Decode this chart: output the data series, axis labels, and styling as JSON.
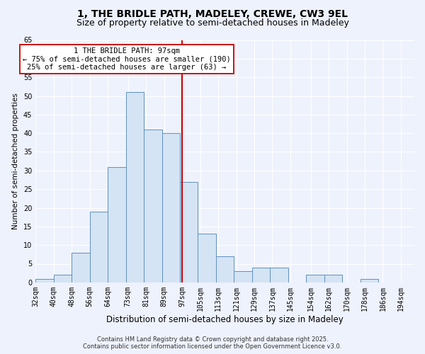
{
  "title": "1, THE BRIDLE PATH, MADELEY, CREWE, CW3 9EL",
  "subtitle": "Size of property relative to semi-detached houses in Madeley",
  "xlabel": "Distribution of semi-detached houses by size in Madeley",
  "ylabel": "Number of semi-detached properties",
  "bin_edges": [
    32,
    40,
    48,
    56,
    64,
    72,
    80,
    88,
    96,
    104,
    112,
    120,
    128,
    136,
    144,
    152,
    160,
    168,
    176,
    184,
    192,
    200
  ],
  "counts": [
    1,
    2,
    8,
    19,
    31,
    51,
    41,
    40,
    27,
    13,
    7,
    3,
    4,
    4,
    0,
    2,
    2,
    0,
    1,
    0,
    0
  ],
  "tick_positions": [
    32,
    40,
    48,
    56,
    64,
    73,
    81,
    89,
    97,
    105,
    113,
    121,
    129,
    137,
    145,
    154,
    162,
    170,
    178,
    186,
    194
  ],
  "tick_labels": [
    "32sqm",
    "40sqm",
    "48sqm",
    "56sqm",
    "64sqm",
    "73sqm",
    "81sqm",
    "89sqm",
    "97sqm",
    "105sqm",
    "113sqm",
    "121sqm",
    "129sqm",
    "137sqm",
    "145sqm",
    "154sqm",
    "162sqm",
    "170sqm",
    "178sqm",
    "186sqm",
    "194sqm"
  ],
  "bar_color": "#d4e4f4",
  "bar_edge_color": "#6090c0",
  "property_line_x": 97,
  "property_line_color": "#cc0000",
  "annotation_title": "1 THE BRIDLE PATH: 97sqm",
  "annotation_line1": "← 75% of semi-detached houses are smaller (190)",
  "annotation_line2": "25% of semi-detached houses are larger (63) →",
  "annotation_box_facecolor": "#ffffff",
  "annotation_box_edgecolor": "#cc0000",
  "ylim": [
    0,
    65
  ],
  "yticks": [
    0,
    5,
    10,
    15,
    20,
    25,
    30,
    35,
    40,
    45,
    50,
    55,
    60,
    65
  ],
  "background_color": "#eef2fc",
  "grid_color": "#ffffff",
  "footer_line1": "Contains HM Land Registry data © Crown copyright and database right 2025.",
  "footer_line2": "Contains public sector information licensed under the Open Government Licence v3.0.",
  "title_fontsize": 10,
  "subtitle_fontsize": 9,
  "xlabel_fontsize": 8.5,
  "ylabel_fontsize": 7.5,
  "tick_fontsize": 7,
  "annot_fontsize": 7.5,
  "footer_fontsize": 6
}
